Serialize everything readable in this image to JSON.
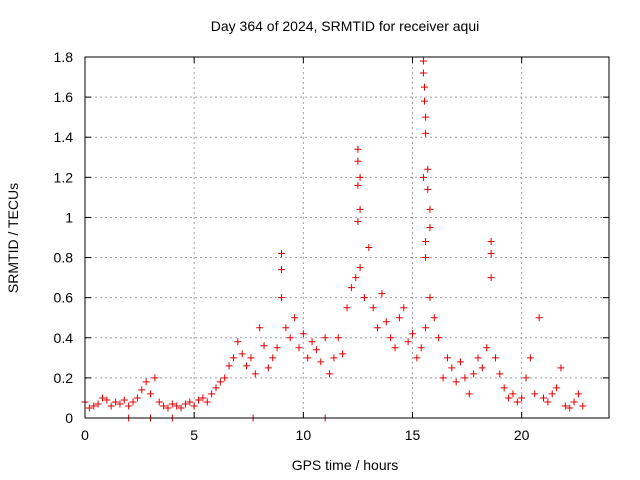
{
  "chart_data": {
    "type": "scatter",
    "title": "Day 364 of 2024, SRMTID for receiver aqui",
    "xlabel": "GPS time / hours",
    "ylabel": "SRMTID / TECUs",
    "xlim": [
      0,
      24
    ],
    "ylim": [
      0,
      1.8
    ],
    "x_ticks": [
      0,
      5,
      10,
      15,
      20
    ],
    "x_tick_labels": [
      "0",
      "5",
      "10",
      "15",
      "20"
    ],
    "y_ticks": [
      0,
      0.2,
      0.4,
      0.6,
      0.8,
      1.0,
      1.2,
      1.4,
      1.6,
      1.8
    ],
    "y_tick_labels": [
      "0",
      "0.2",
      "0.4",
      "0.6",
      "0.8",
      "1",
      "1.2",
      "1.4",
      "1.6",
      "1.8"
    ],
    "grid": true,
    "marker": "plus",
    "color": "#e00000",
    "series": [
      {
        "name": "SRMTID",
        "x": [
          0.0,
          0.2,
          0.4,
          0.6,
          0.8,
          1.0,
          1.2,
          1.4,
          1.6,
          1.8,
          2.0,
          2.2,
          2.4,
          2.6,
          2.8,
          3.0,
          3.2,
          3.4,
          3.6,
          3.8,
          4.0,
          4.2,
          4.4,
          4.6,
          4.8,
          5.0,
          5.2,
          5.4,
          5.6,
          5.8,
          6.0,
          6.2,
          6.4,
          6.6,
          6.8,
          7.0,
          7.2,
          7.4,
          7.6,
          7.8,
          8.0,
          8.2,
          8.4,
          8.6,
          8.8,
          9.0,
          9.2,
          9.4,
          9.6,
          9.8,
          10.0,
          10.2,
          10.4,
          10.6,
          10.8,
          11.0,
          11.2,
          11.4,
          11.6,
          11.8,
          12.0,
          12.2,
          12.4,
          12.6,
          12.8,
          13.0,
          13.2,
          13.4,
          13.6,
          13.8,
          14.0,
          14.2,
          14.4,
          14.6,
          14.8,
          15.0,
          15.2,
          15.4,
          15.6,
          15.8,
          16.0,
          16.2,
          16.4,
          16.6,
          16.8,
          17.0,
          17.2,
          17.4,
          17.6,
          17.8,
          18.0,
          18.2,
          18.4,
          18.6,
          18.8,
          19.0,
          19.2,
          19.4,
          19.6,
          19.8,
          20.0,
          20.2,
          20.4,
          20.6,
          20.8,
          21.0,
          21.2,
          21.4,
          21.6,
          21.8,
          22.0,
          22.2,
          22.4,
          22.6,
          22.8,
          9.0,
          9.0,
          12.5,
          12.5,
          12.6,
          12.6,
          12.5,
          12.5,
          15.5,
          15.5,
          15.55,
          15.55,
          15.6,
          15.6,
          15.5,
          15.7,
          15.7,
          15.8,
          15.8,
          15.6,
          15.6,
          18.6,
          18.6,
          2.0,
          3.0,
          4.0,
          7.7,
          11.0
        ],
        "y": [
          0.08,
          0.05,
          0.06,
          0.07,
          0.1,
          0.09,
          0.06,
          0.08,
          0.07,
          0.09,
          0.06,
          0.08,
          0.1,
          0.14,
          0.18,
          0.12,
          0.2,
          0.08,
          0.06,
          0.05,
          0.07,
          0.06,
          0.05,
          0.07,
          0.08,
          0.06,
          0.09,
          0.1,
          0.08,
          0.12,
          0.15,
          0.18,
          0.2,
          0.26,
          0.3,
          0.38,
          0.32,
          0.26,
          0.3,
          0.22,
          0.45,
          0.36,
          0.25,
          0.3,
          0.35,
          0.6,
          0.45,
          0.4,
          0.5,
          0.35,
          0.42,
          0.3,
          0.38,
          0.34,
          0.28,
          0.4,
          0.22,
          0.3,
          0.4,
          0.32,
          0.55,
          0.65,
          0.7,
          0.75,
          0.6,
          0.85,
          0.55,
          0.45,
          0.62,
          0.48,
          0.4,
          0.35,
          0.5,
          0.55,
          0.38,
          0.42,
          0.3,
          0.35,
          0.45,
          0.6,
          0.5,
          0.4,
          0.2,
          0.3,
          0.25,
          0.18,
          0.28,
          0.2,
          0.12,
          0.22,
          0.3,
          0.25,
          0.35,
          0.7,
          0.3,
          0.22,
          0.15,
          0.1,
          0.12,
          0.08,
          0.1,
          0.2,
          0.3,
          0.12,
          0.5,
          0.1,
          0.08,
          0.12,
          0.15,
          0.25,
          0.06,
          0.05,
          0.08,
          0.12,
          0.06,
          0.82,
          0.74,
          1.34,
          1.28,
          1.2,
          1.04,
          0.98,
          1.16,
          1.78,
          1.72,
          1.65,
          1.58,
          1.5,
          1.42,
          1.2,
          1.24,
          1.14,
          1.04,
          0.95,
          0.88,
          0.8,
          0.88,
          0.82,
          0.0,
          0.0,
          0.0,
          0.0,
          0.0
        ]
      }
    ]
  }
}
